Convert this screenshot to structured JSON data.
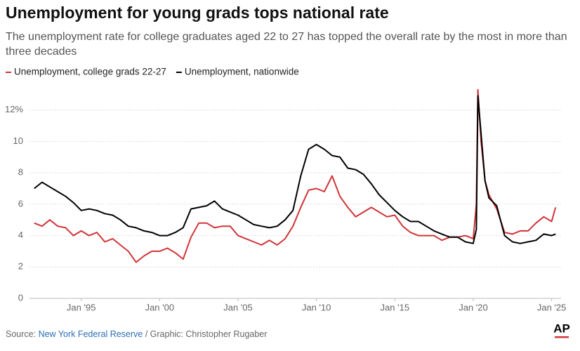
{
  "chart_data": {
    "type": "line",
    "title": "Unemployment for young grads tops national rate",
    "subtitle": "The unemployment rate for college graduates aged 22 to 27 has topped the overall rate by the most in more than three decades",
    "x": [
      1992,
      1992.5,
      1993,
      1993.5,
      1994,
      1994.5,
      1995,
      1995.5,
      1996,
      1996.5,
      1997,
      1997.5,
      1998,
      1998.5,
      1999,
      1999.5,
      2000,
      2000.5,
      2001,
      2001.5,
      2002,
      2002.5,
      2003,
      2003.5,
      2004,
      2004.5,
      2005,
      2005.5,
      2006,
      2006.5,
      2007,
      2007.5,
      2008,
      2008.5,
      2009,
      2009.5,
      2010,
      2010.5,
      2011,
      2011.5,
      2012,
      2012.5,
      2013,
      2013.5,
      2014,
      2014.5,
      2015,
      2015.5,
      2016,
      2016.5,
      2017,
      2017.5,
      2018,
      2018.5,
      2019,
      2019.5,
      2020,
      2020.2,
      2020.3,
      2020.5,
      2020.75,
      2021,
      2021.5,
      2022,
      2022.5,
      2023,
      2023.5,
      2024,
      2024.5,
      2025,
      2025.25
    ],
    "series": [
      {
        "name": "Unemployment, college grads 22-27",
        "color": "#d13438",
        "values": [
          4.8,
          4.6,
          5.0,
          4.6,
          4.5,
          4.0,
          4.3,
          4.0,
          4.2,
          3.6,
          3.8,
          3.4,
          3.0,
          2.3,
          2.7,
          3.0,
          3.0,
          3.2,
          2.9,
          2.5,
          3.9,
          4.8,
          4.8,
          4.5,
          4.6,
          4.6,
          4.0,
          3.8,
          3.6,
          3.4,
          3.7,
          3.4,
          3.8,
          4.6,
          5.8,
          6.9,
          7.0,
          6.8,
          7.8,
          6.5,
          5.8,
          5.2,
          5.5,
          5.8,
          5.5,
          5.2,
          5.3,
          4.6,
          4.2,
          4.0,
          4.0,
          4.0,
          3.7,
          3.9,
          3.9,
          4.0,
          3.8,
          6.0,
          13.3,
          10.0,
          7.5,
          6.6,
          5.7,
          4.2,
          4.1,
          4.3,
          4.3,
          4.8,
          5.2,
          4.9,
          5.8
        ]
      },
      {
        "name": "Unemployment, nationwide",
        "color": "#000000",
        "values": [
          7.0,
          7.4,
          7.1,
          6.8,
          6.5,
          6.1,
          5.6,
          5.7,
          5.6,
          5.4,
          5.3,
          5.0,
          4.6,
          4.5,
          4.3,
          4.2,
          4.0,
          4.0,
          4.2,
          4.5,
          5.7,
          5.8,
          5.9,
          6.2,
          5.7,
          5.5,
          5.3,
          5.0,
          4.7,
          4.6,
          4.5,
          4.6,
          5.0,
          5.6,
          7.8,
          9.5,
          9.8,
          9.5,
          9.1,
          9.0,
          8.3,
          8.2,
          7.9,
          7.3,
          6.6,
          6.1,
          5.6,
          5.2,
          4.9,
          4.9,
          4.6,
          4.3,
          4.1,
          3.9,
          3.9,
          3.6,
          3.5,
          4.4,
          12.9,
          10.5,
          7.5,
          6.4,
          5.9,
          4.0,
          3.6,
          3.5,
          3.6,
          3.7,
          4.1,
          4.0,
          4.1
        ]
      }
    ],
    "xlim": [
      1991.7,
      2025.6
    ],
    "xticks": [
      {
        "value": 1995,
        "label": "Jan '95"
      },
      {
        "value": 2000,
        "label": "Jan '00"
      },
      {
        "value": 2005,
        "label": "Jan '05"
      },
      {
        "value": 2010,
        "label": "Jan '10"
      },
      {
        "value": 2015,
        "label": "Jan '15"
      },
      {
        "value": 2020,
        "label": "Jan '20"
      },
      {
        "value": 2025,
        "label": "Jan '25"
      }
    ],
    "ylim": [
      0,
      13.6
    ],
    "yticks": [
      0,
      2,
      4,
      6,
      8,
      10,
      {
        "value": 12,
        "label": "12%"
      }
    ],
    "grid": true,
    "source_prefix": "Source: ",
    "source_link": "New York Federal Reserve",
    "credit": " / Graphic: Christopher Rugaber",
    "logo": "AP"
  }
}
